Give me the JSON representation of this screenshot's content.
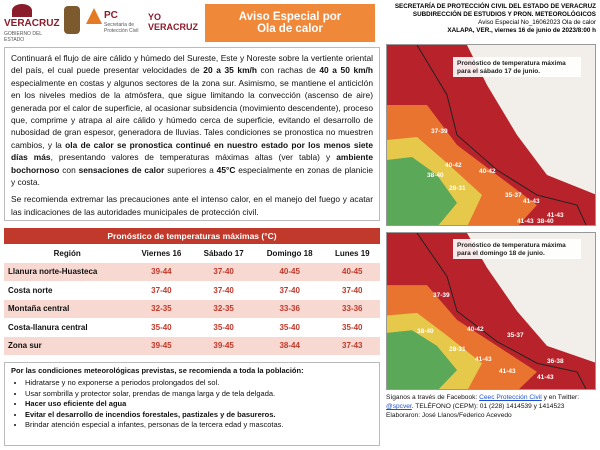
{
  "header": {
    "logos": [
      "VERACRUZ",
      "GOBIERNO DEL ESTADO",
      "PC",
      "Secretaría de Protección Civil",
      "YO VERACRUZ"
    ],
    "title": [
      "Aviso Especial por",
      "Ola de calor"
    ],
    "agency": [
      "SECRETARÍA DE PROTECCIÓN CIVIL DEL ESTADO DE VERACRUZ",
      "SUBDIRECCIÓN DE ESTUDIOS Y PRON. METEOROLÓGICOS",
      "Aviso Especial No_16062023 Ola de calor",
      "XALAPA, VER., viernes 16 de junio de 2023/8:00 h"
    ]
  },
  "body": {
    "paragraphs": [
      [
        {
          "text": "Continuará el flujo de aire cálido y húmedo del Sureste, Este y Noreste sobre la vertiente oriental del país, el cual puede presentar velocidades de "
        },
        {
          "text": "20 a 35 km/h",
          "bold": true
        },
        {
          "text": " con rachas de "
        },
        {
          "text": "40 a 50 km/h",
          "bold": true
        },
        {
          "text": " especialmente en costas y algunos sectores de la zona sur. Asimismo, se mantiene el anticiclón en los niveles medios de la atmósfera, que sigue limitando la convección (ascenso de aire) generada por el calor de superficie, al ocasionar subsidencia (movimiento descendente), proceso que, comprime y atrapa al aire cálido y húmedo cerca de superficie, evitando el desarrollo de nubosidad de gran espesor, generadora de lluvias. Tales  condiciones se pronostica no muestren cambios, y la "
        },
        {
          "text": "ola de calor se pronostica continué en nuestro estado por los menos siete días más",
          "bold": true
        },
        {
          "text": ", presentando valores de temperaturas máximas altas (ver tabla) y "
        },
        {
          "text": "ambiente bochornoso",
          "bold": true
        },
        {
          "text": " con "
        },
        {
          "text": "sensaciones de calor",
          "bold": true
        },
        {
          "text": " superiores a "
        },
        {
          "text": "45°C",
          "bold": true
        },
        {
          "text": " especialmente en zonas de planicie y costa."
        }
      ],
      [
        {
          "text": "Se recomienda extremar las precauciones ante el intenso calor, en el manejo del fuego y acatar las indicaciones de las autoridades municipales de protección civil."
        }
      ]
    ]
  },
  "table": {
    "title": "Pronóstico de temperaturas máximas (°C)",
    "columns": [
      "Región",
      "Viernes 16",
      "Sábado 17",
      "Domingo 18",
      "Lunes 19"
    ],
    "rows": [
      [
        "Llanura norte-Huasteca",
        "39-44",
        "37-40",
        "40-45",
        "40-45"
      ],
      [
        "Costa norte",
        "37-40",
        "37-40",
        "37-40",
        "37-40"
      ],
      [
        "Montaña central",
        "32-35",
        "32-35",
        "33-36",
        "33-36"
      ],
      [
        "Costa-llanura central",
        "35-40",
        "35-40",
        "35-40",
        "35-40"
      ],
      [
        "Zona sur",
        "39-45",
        "39-45",
        "38-44",
        "37-43"
      ]
    ]
  },
  "recommendations": {
    "title": "Por las condiciones meteorológicas previstas, se recomienda a toda la población:",
    "items": [
      {
        "text": "Hidratarse y no exponerse a periodos prolongados del sol."
      },
      {
        "text": "Usar sombrilla y protector solar, prendas de manga larga y de tela delgada."
      },
      {
        "text": "Hacer uso eficiente del agua",
        "bold": true
      },
      {
        "text": "Evitar el desarrollo de incendios forestales, pastizales y de basureros.",
        "bold": true
      },
      {
        "text": "Brindar atención especial a infantes, personas de la tercera edad y mascotas."
      }
    ]
  },
  "maps": [
    {
      "caption": [
        "Pronóstico de temperatura máxima",
        "para el sábado 17 de junio."
      ],
      "labels": [
        "37-39",
        "40-42",
        "38-40",
        "28-31",
        "40-42",
        "35-37",
        "41-43",
        "38-40",
        "41-43",
        "41-43"
      ]
    },
    {
      "caption": [
        "Pronóstico de temperatura máxima",
        "para el domingo 18 de junio."
      ],
      "labels": [
        "37-39",
        "38-40",
        "40-42",
        "28-31",
        "35-37",
        "41-43",
        "36-38",
        "41-43",
        "41-43"
      ]
    }
  ],
  "footer": {
    "lines": [
      [
        {
          "text": "Síganos a través de Facebook: "
        },
        {
          "text": "Ceec Protección Civil",
          "link": true
        },
        {
          "text": "  y en Twitter: "
        }
      ],
      [
        {
          "text": "@spcver",
          "link": true
        },
        {
          "text": ".  TELÉFONO (CEPM):  01 (228) 1414539 y 1414523"
        }
      ],
      [
        {
          "text": "Elaboraron: José Llanos/Federico Acevedo"
        }
      ]
    ]
  }
}
